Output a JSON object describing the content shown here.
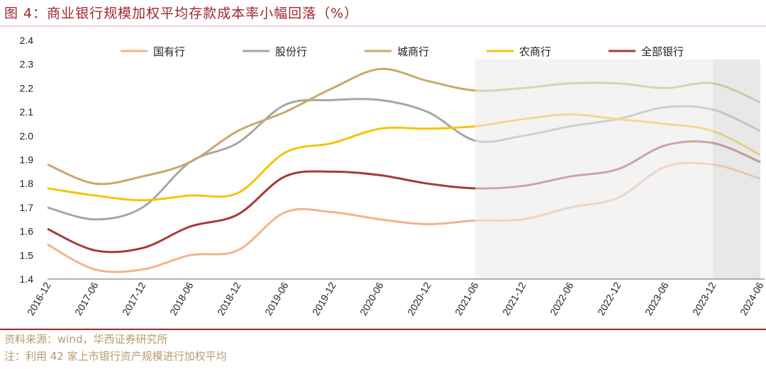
{
  "title": "图 4：商业银行规模加权平均存款成本率小幅回落（%）",
  "source": "资料来源：wind，华西证券研究所",
  "note": "注：利用 42 家上市银行资产规模进行加权平均",
  "chart_data": {
    "type": "line",
    "title": "图 4：商业银行规模加权平均存款成本率小幅回落（%）",
    "categories": [
      "2016-12",
      "2017-06",
      "2017-12",
      "2018-06",
      "2018-12",
      "2019-06",
      "2019-12",
      "2020-06",
      "2020-12",
      "2021-06",
      "2021-12",
      "2022-06",
      "2022-12",
      "2023-06",
      "2023-12",
      "2024-06"
    ],
    "ylim": [
      1.4,
      2.4
    ],
    "yticks": [
      "1.4",
      "1.5",
      "1.6",
      "1.7",
      "1.8",
      "1.9",
      "2.0",
      "2.1",
      "2.2",
      "2.3",
      "2.4"
    ],
    "grid": false,
    "legend": "top",
    "smooth": true,
    "shaded_ranges": [
      {
        "from": "2021-06",
        "to": "2023-12",
        "color": "#ebebeb"
      },
      {
        "from": "2023-12",
        "to": "2024-06",
        "color": "#d9d9d9"
      }
    ],
    "series": [
      {
        "name": "国有行",
        "color": "#f2b38e",
        "values": [
          1.545,
          1.44,
          1.44,
          1.5,
          1.52,
          1.68,
          1.68,
          1.65,
          1.63,
          1.645,
          1.65,
          1.7,
          1.74,
          1.87,
          1.88,
          1.82
        ]
      },
      {
        "name": "股份行",
        "color": "#a6a6a6",
        "values": [
          1.7,
          1.65,
          1.7,
          1.89,
          1.97,
          2.13,
          2.15,
          2.15,
          2.1,
          1.98,
          2.0,
          2.04,
          2.07,
          2.12,
          2.11,
          2.02
        ]
      },
      {
        "name": "城商行",
        "color": "#c9a86a",
        "values": [
          1.88,
          1.8,
          1.83,
          1.89,
          2.02,
          2.1,
          2.2,
          2.28,
          2.23,
          2.19,
          2.2,
          2.22,
          2.22,
          2.2,
          2.22,
          2.14
        ]
      },
      {
        "name": "农商行",
        "color": "#f5c400",
        "values": [
          1.78,
          1.75,
          1.73,
          1.75,
          1.76,
          1.93,
          1.97,
          2.03,
          2.03,
          2.04,
          2.07,
          2.09,
          2.07,
          2.05,
          2.02,
          1.92
        ]
      },
      {
        "name": "全部银行",
        "color": "#a63a3a",
        "values": [
          1.61,
          1.52,
          1.53,
          1.62,
          1.67,
          1.83,
          1.85,
          1.835,
          1.8,
          1.78,
          1.79,
          1.83,
          1.86,
          1.96,
          1.97,
          1.89
        ]
      }
    ]
  }
}
